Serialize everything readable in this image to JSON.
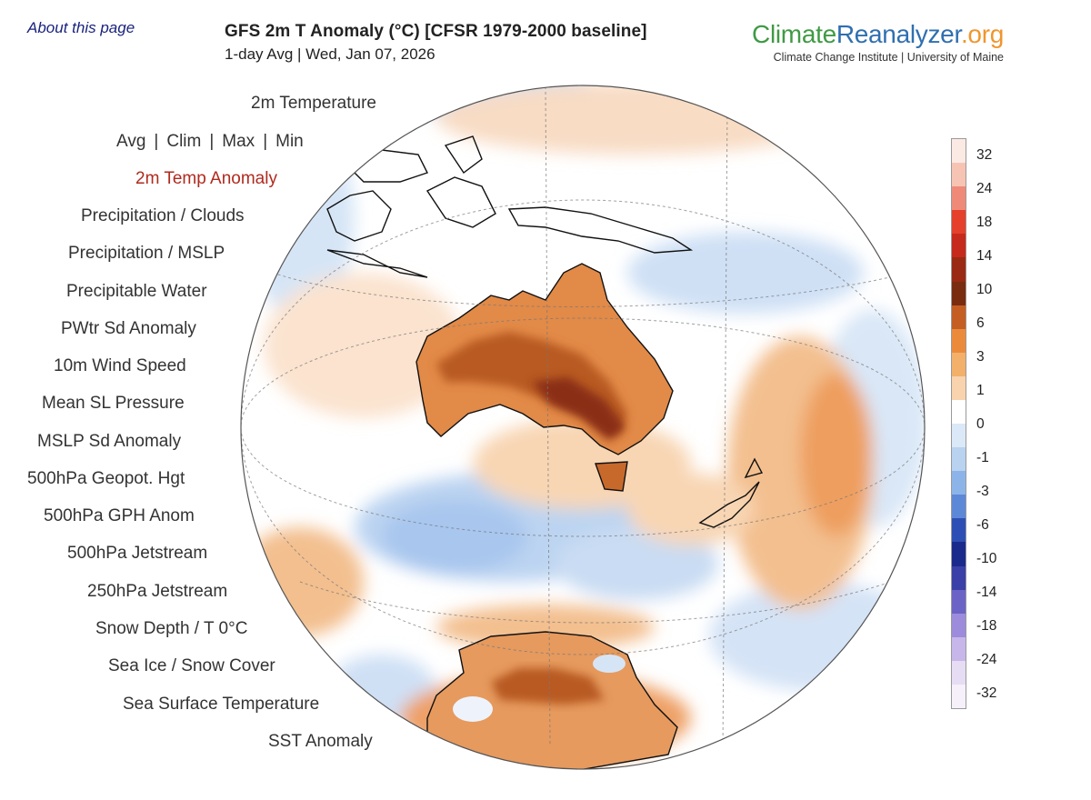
{
  "header": {
    "about_link": "About this page",
    "title": "GFS 2m T Anomaly (°C) [CFSR 1979-2000 baseline]",
    "subtitle": "1-day Avg | Wed, Jan 07, 2026"
  },
  "brand": {
    "name_part1": "Climate",
    "name_part2": "Reanalyzer",
    "name_part3": ".org",
    "tagline": "Climate Change Institute | University of Maine",
    "colors": {
      "climate": "#3f9a44",
      "reanalyzer": "#2f6fb0",
      "org": "#f0962e"
    }
  },
  "menu": {
    "temperature": "2m Temperature",
    "avg": "Avg",
    "clim": "Clim",
    "max": "Max",
    "min": "Min",
    "separator": "|",
    "temp_anomaly": "2m Temp Anomaly",
    "precip_clouds": "Precipitation / Clouds",
    "precip_mslp": "Precipitation / MSLP",
    "precip_water": "Precipitable Water",
    "pwtr_sd": "PWtr Sd Anomaly",
    "wind_speed": "10m Wind Speed",
    "mean_sl_pressure": "Mean SL Pressure",
    "mslp_sd": "MSLP Sd Anomaly",
    "geopot_500": "500hPa Geopot. Hgt",
    "gph_anom_500": "500hPa GPH Anom",
    "jetstream_500": "500hPa Jetstream",
    "jetstream_250": "250hPa Jetstream",
    "snow_depth": "Snow Depth / T 0°C",
    "sea_ice": "Sea Ice / Snow Cover",
    "sst": "Sea Surface Temperature",
    "sst_anomaly": "SST Anomaly",
    "active_color": "#b02a1e"
  },
  "colorbar": {
    "labels": [
      "32",
      "24",
      "18",
      "14",
      "10",
      "6",
      "3",
      "1",
      "0",
      "-1",
      "-3",
      "-6",
      "-10",
      "-14",
      "-18",
      "-24",
      "-32"
    ],
    "colors": [
      "#fbe9e4",
      "#f7c4b4",
      "#f08a78",
      "#e4402c",
      "#c62a1d",
      "#9a2a14",
      "#7a2c10",
      "#c45e22",
      "#ec8a3c",
      "#f3b06a",
      "#f8d3ad",
      "#ffffff",
      "#dbe8f7",
      "#b8d2f0",
      "#8db4e8",
      "#5d88d8",
      "#2d4fb5",
      "#1a2a8c",
      "#3b3fa8",
      "#6c63c6",
      "#9d8cdc",
      "#c7b6ea",
      "#e6dcf3",
      "#f6f0fa"
    ]
  },
  "map": {
    "projection_label": "Orthographic globe centered on Australia / Southern Ocean"
  }
}
